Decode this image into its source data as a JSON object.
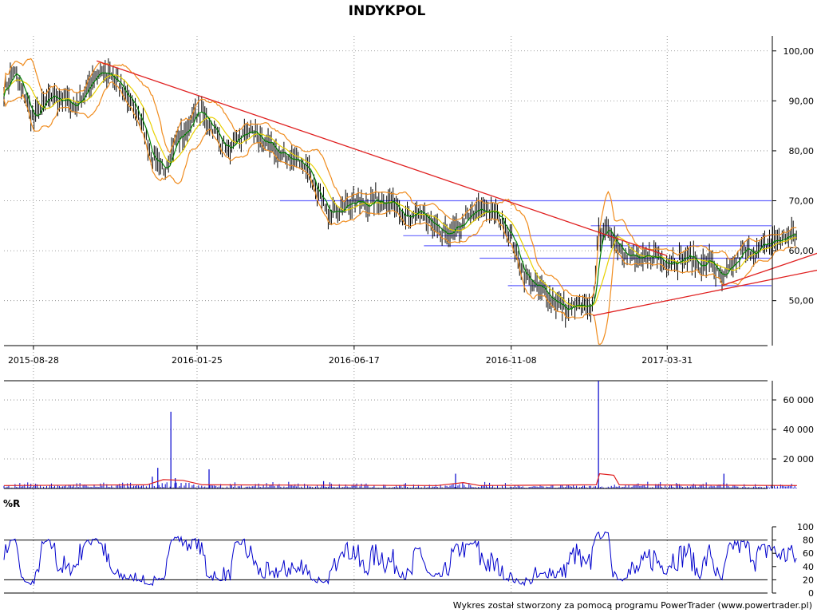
{
  "chart_data": {
    "title": "INDYKPOL",
    "footer": "Wykres został stworzony za pomocą programu PowerTrader (www.powertrader.pl)",
    "colors": {
      "bg": "#ffffff",
      "grid": "#808080",
      "candle": "#000000",
      "ma_fast": "#008000",
      "ma_slow": "#e8d000",
      "bollinger": "#f08c1e",
      "trend": "#e02020",
      "horizontal": "#6666ff",
      "volume": "#0000cc",
      "volume_avg": "#e02020",
      "wr": "#0000cc"
    },
    "price": {
      "type": "line",
      "y_ticks": [
        "100,00",
        "90,00",
        "80,00",
        "70,00",
        "60,00",
        "50,00"
      ],
      "ylim": [
        41,
        103
      ],
      "x_ticks": [
        "2015-08-28",
        "2016-01-25",
        "2016-06-17",
        "2016-11-08",
        "2017-03-31"
      ],
      "xlim": [
        "2015-08-01",
        "2017-07-01"
      ],
      "close": [
        [
          "2015-08-01",
          92
        ],
        [
          "2015-08-10",
          96
        ],
        [
          "2015-08-20",
          91
        ],
        [
          "2015-08-28",
          86
        ],
        [
          "2015-09-05",
          89
        ],
        [
          "2015-09-15",
          91
        ],
        [
          "2015-09-25",
          90
        ],
        [
          "2015-10-05",
          89
        ],
        [
          "2015-10-15",
          92
        ],
        [
          "2015-10-25",
          96
        ],
        [
          "2015-11-05",
          95
        ],
        [
          "2015-11-15",
          93
        ],
        [
          "2015-11-25",
          90
        ],
        [
          "2015-12-05",
          86
        ],
        [
          "2015-12-15",
          78
        ],
        [
          "2015-12-25",
          76
        ],
        [
          "2016-01-05",
          82
        ],
        [
          "2016-01-15",
          84
        ],
        [
          "2016-01-25",
          88
        ],
        [
          "2016-02-05",
          86
        ],
        [
          "2016-02-15",
          82
        ],
        [
          "2016-02-25",
          80
        ],
        [
          "2016-03-05",
          83
        ],
        [
          "2016-03-15",
          84
        ],
        [
          "2016-03-25",
          82
        ],
        [
          "2016-04-05",
          80
        ],
        [
          "2016-04-15",
          79
        ],
        [
          "2016-04-25",
          78
        ],
        [
          "2016-05-05",
          77
        ],
        [
          "2016-05-15",
          71
        ],
        [
          "2016-05-25",
          67
        ],
        [
          "2016-06-05",
          69
        ],
        [
          "2016-06-17",
          70
        ],
        [
          "2016-06-27",
          69
        ],
        [
          "2016-07-07",
          70
        ],
        [
          "2016-07-17",
          70
        ],
        [
          "2016-07-27",
          69
        ],
        [
          "2016-08-07",
          66
        ],
        [
          "2016-08-17",
          68
        ],
        [
          "2016-08-27",
          65
        ],
        [
          "2016-09-07",
          63
        ],
        [
          "2016-09-17",
          64
        ],
        [
          "2016-09-27",
          66
        ],
        [
          "2016-10-07",
          68
        ],
        [
          "2016-10-17",
          68
        ],
        [
          "2016-10-27",
          67
        ],
        [
          "2016-11-08",
          63
        ],
        [
          "2016-11-18",
          56
        ],
        [
          "2016-11-28",
          53
        ],
        [
          "2016-12-08",
          52
        ],
        [
          "2016-12-18",
          50
        ],
        [
          "2016-12-28",
          48
        ],
        [
          "2017-01-07",
          49
        ],
        [
          "2017-01-17",
          48
        ],
        [
          "2017-01-22",
          50
        ],
        [
          "2017-01-27",
          63
        ],
        [
          "2017-02-05",
          64
        ],
        [
          "2017-02-15",
          61
        ],
        [
          "2017-02-25",
          59
        ],
        [
          "2017-03-07",
          58
        ],
        [
          "2017-03-17",
          59
        ],
        [
          "2017-03-31",
          58
        ],
        [
          "2017-04-10",
          58
        ],
        [
          "2017-04-20",
          59
        ],
        [
          "2017-04-30",
          57
        ],
        [
          "2017-05-10",
          58
        ],
        [
          "2017-05-20",
          54
        ],
        [
          "2017-05-30",
          57
        ],
        [
          "2017-06-09",
          60
        ],
        [
          "2017-06-19",
          60
        ],
        [
          "2017-06-29",
          61
        ],
        [
          "2017-07-05",
          62
        ],
        [
          "2017-07-12",
          62
        ],
        [
          "2017-07-20",
          63
        ],
        [
          "2017-07-28",
          63
        ]
      ],
      "trendlines": [
        {
          "from": [
            "2015-10-25",
            98
          ],
          "to": [
            "2017-03-31",
            59
          ]
        },
        {
          "from": [
            "2017-01-22",
            47
          ],
          "to": [
            "2017-09-05",
            57
          ]
        },
        {
          "from": [
            "2017-05-20",
            53
          ],
          "to": [
            "2017-09-05",
            61
          ]
        }
      ],
      "horizontal_lines": [
        {
          "from": "2016-04-10",
          "value": 70
        },
        {
          "from": "2017-01-20",
          "value": 65
        },
        {
          "from": "2016-08-01",
          "value": 63
        },
        {
          "from": "2016-08-20",
          "value": 61
        },
        {
          "from": "2016-10-10",
          "value": 58.5
        },
        {
          "from": "2016-11-05",
          "value": 53
        }
      ]
    },
    "volume": {
      "type": "bar",
      "y_ticks": [
        "60 000",
        "40 000",
        "20 000"
      ],
      "ylim": [
        0,
        73000
      ],
      "spikes": [
        [
          "2015-12-15",
          8000
        ],
        [
          "2015-12-20",
          14000
        ],
        [
          "2016-01-01",
          52000
        ],
        [
          "2016-01-05",
          7000
        ],
        [
          "2016-02-05",
          13000
        ],
        [
          "2016-05-20",
          5000
        ],
        [
          "2016-09-18",
          10000
        ],
        [
          "2017-01-27",
          73000
        ],
        [
          "2017-05-22",
          10000
        ]
      ],
      "avg": [
        [
          "2015-08-01",
          2000
        ],
        [
          "2015-12-10",
          2500
        ],
        [
          "2015-12-25",
          6000
        ],
        [
          "2016-01-12",
          5500
        ],
        [
          "2016-01-30",
          2500
        ],
        [
          "2016-09-01",
          2000
        ],
        [
          "2016-09-25",
          4000
        ],
        [
          "2016-10-10",
          2000
        ],
        [
          "2017-01-25",
          2500
        ],
        [
          "2017-01-28",
          10000
        ],
        [
          "2017-02-10",
          9000
        ],
        [
          "2017-02-15",
          2500
        ],
        [
          "2017-07-28",
          2000
        ]
      ]
    },
    "williams_r": {
      "type": "line",
      "label": "%R",
      "y_ticks": [
        "100",
        "80",
        "60",
        "40",
        "20",
        "0"
      ],
      "ylim": [
        0,
        100
      ]
    }
  }
}
